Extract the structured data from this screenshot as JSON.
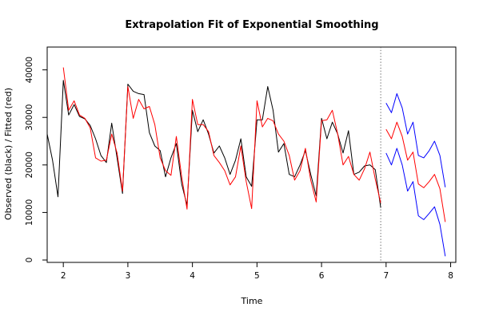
{
  "chart_data": {
    "type": "line",
    "title": "Extrapolation Fit of Exponential Smoothing",
    "xlabel": "Time",
    "ylabel": "Observed (black) / Fitted (red)",
    "xlim": [
      1.75,
      8.08
    ],
    "ylim": [
      -500,
      44800
    ],
    "x_ticks": [
      2,
      3,
      4,
      5,
      6,
      7,
      8
    ],
    "y_ticks": [
      0,
      10000,
      20000,
      30000,
      40000
    ],
    "x_tick_labels": [
      "2",
      "3",
      "4",
      "5",
      "6",
      "7",
      "8"
    ],
    "y_tick_labels": [
      "0",
      "10000",
      "20000",
      "30000",
      "40000"
    ],
    "grid": false,
    "legend": "none",
    "forecast_start": 6.917,
    "series": [
      {
        "key": "observed",
        "color": "#000000",
        "x": [
          1.75,
          1.833,
          1.917,
          2.0,
          2.083,
          2.167,
          2.25,
          2.333,
          2.417,
          2.5,
          2.583,
          2.667,
          2.75,
          2.833,
          2.917,
          3.0,
          3.083,
          3.167,
          3.25,
          3.333,
          3.417,
          3.5,
          3.583,
          3.667,
          3.75,
          3.833,
          3.917,
          4.0,
          4.083,
          4.167,
          4.25,
          4.333,
          4.417,
          4.5,
          4.583,
          4.667,
          4.75,
          4.833,
          4.917,
          5.0,
          5.083,
          5.167,
          5.25,
          5.333,
          5.417,
          5.5,
          5.583,
          5.667,
          5.75,
          5.833,
          5.917,
          6.0,
          6.083,
          6.167,
          6.25,
          6.333,
          6.417,
          6.5,
          6.583,
          6.667,
          6.75,
          6.833,
          6.917
        ],
        "y": [
          26500,
          21000,
          13300,
          37800,
          30500,
          32700,
          30200,
          29700,
          28300,
          25500,
          22000,
          20500,
          28800,
          21500,
          14000,
          37000,
          35500,
          35000,
          34800,
          26800,
          24000,
          23000,
          17500,
          21500,
          24500,
          16000,
          11500,
          31500,
          27000,
          29500,
          26500,
          22500,
          24000,
          21500,
          18000,
          21000,
          25500,
          17500,
          15500,
          29500,
          29500,
          36500,
          31500,
          22700,
          24500,
          18000,
          17500,
          20000,
          23000,
          18000,
          13500,
          29800,
          25500,
          29000,
          26500,
          22500,
          27200,
          18000,
          18500,
          19800,
          20000,
          19000,
          11000
        ]
      },
      {
        "key": "fitted",
        "color": "#ff0000",
        "x": [
          2.0,
          2.083,
          2.167,
          2.25,
          2.333,
          2.417,
          2.5,
          2.583,
          2.667,
          2.75,
          2.833,
          2.917,
          3.0,
          3.083,
          3.167,
          3.25,
          3.333,
          3.417,
          3.5,
          3.583,
          3.667,
          3.75,
          3.833,
          3.917,
          4.0,
          4.083,
          4.167,
          4.25,
          4.333,
          4.417,
          4.5,
          4.583,
          4.667,
          4.75,
          4.833,
          4.917,
          5.0,
          5.083,
          5.167,
          5.25,
          5.333,
          5.417,
          5.5,
          5.583,
          5.667,
          5.75,
          5.833,
          5.917,
          6.0,
          6.083,
          6.167,
          6.25,
          6.333,
          6.417,
          6.5,
          6.583,
          6.667,
          6.75,
          6.833,
          6.917
        ],
        "y": [
          40500,
          31500,
          33500,
          30500,
          29800,
          27800,
          21500,
          20800,
          21000,
          26500,
          22500,
          14500,
          36500,
          29800,
          33800,
          31800,
          32300,
          28500,
          21500,
          18800,
          17800,
          26000,
          17500,
          10700,
          33800,
          28500,
          28500,
          27000,
          22000,
          20500,
          18800,
          15800,
          17500,
          24000,
          16500,
          10800,
          33500,
          28000,
          29800,
          29300,
          26500,
          25000,
          22000,
          16800,
          18800,
          23500,
          16800,
          12200,
          29300,
          29500,
          31500,
          26500,
          20000,
          21800,
          18000,
          16800,
          19200,
          22700,
          17000,
          12000
        ]
      },
      {
        "key": "forecast-fitted",
        "color": "#ff0000",
        "x": [
          7.0,
          7.083,
          7.167,
          7.25,
          7.333,
          7.417,
          7.5,
          7.583,
          7.667,
          7.75,
          7.833,
          7.917
        ],
        "y": [
          27500,
          25500,
          29000,
          26000,
          21000,
          22700,
          16000,
          15200,
          16500,
          18000,
          15000,
          8000
        ]
      },
      {
        "key": "forecast-upper",
        "color": "#0000ff",
        "x": [
          7.0,
          7.083,
          7.167,
          7.25,
          7.333,
          7.417,
          7.5,
          7.583,
          7.667,
          7.75,
          7.833,
          7.917
        ],
        "y": [
          33000,
          31000,
          35000,
          32000,
          26500,
          29000,
          22000,
          21500,
          23000,
          25000,
          22000,
          15300
        ]
      },
      {
        "key": "forecast-lower",
        "color": "#0000ff",
        "x": [
          7.0,
          7.083,
          7.167,
          7.25,
          7.333,
          7.417,
          7.5,
          7.583,
          7.667,
          7.75,
          7.833,
          7.917
        ],
        "y": [
          22500,
          20000,
          23500,
          20000,
          14500,
          16500,
          9300,
          8500,
          9800,
          11200,
          7500,
          800
        ]
      }
    ]
  }
}
